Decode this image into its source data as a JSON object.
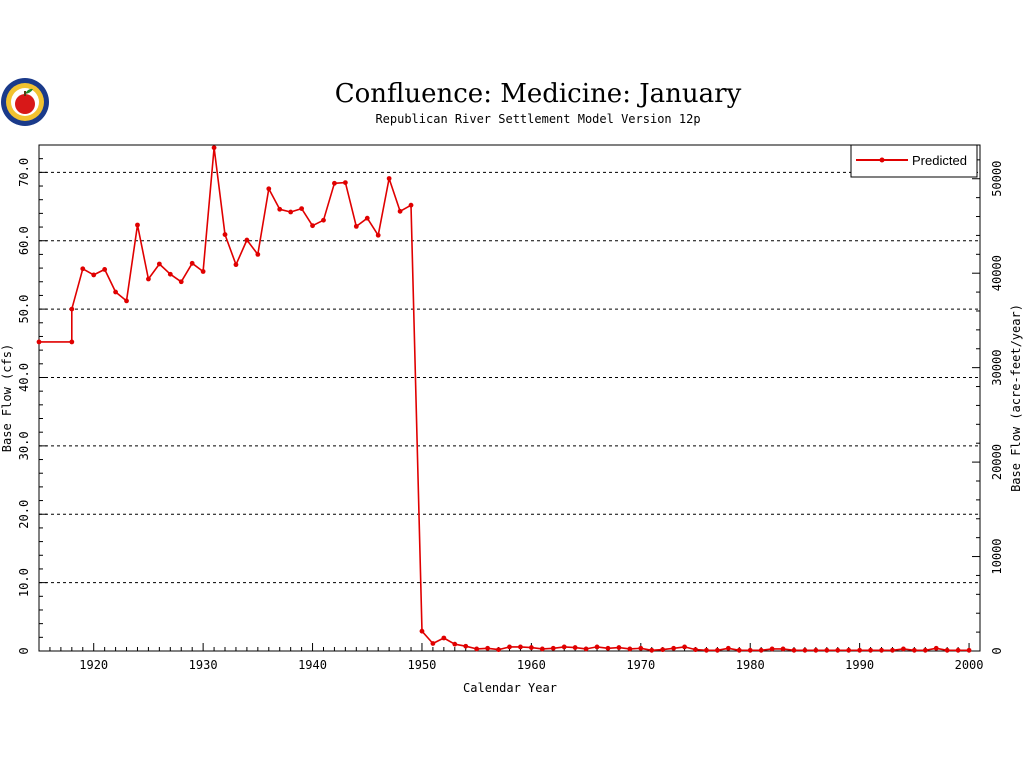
{
  "chart_data": {
    "type": "line",
    "title": "Confluence: Medicine: January",
    "subtitle": "Republican River Settlement Model Version 12p",
    "xlabel": "Calendar Year",
    "ylabel": "Base Flow (cfs)",
    "ylabel_right": "Base Flow (acre-feet/year)",
    "xlim": [
      1915,
      2001
    ],
    "ylim": [
      0,
      74
    ],
    "ylim_right": [
      0,
      53572.6
    ],
    "x_ticks": [
      1920,
      1930,
      1940,
      1950,
      1960,
      1970,
      1980,
      1990,
      2000
    ],
    "y_ticks": [
      0,
      10,
      20,
      30,
      40,
      50,
      60,
      70
    ],
    "y_tick_labels": [
      "0",
      "10.0",
      "20.0",
      "30.0",
      "40.0",
      "50.0",
      "60.0",
      "70.0"
    ],
    "y_ticks_right": [
      0,
      10000,
      20000,
      30000,
      40000,
      50000
    ],
    "y_tick_labels_right": [
      "0",
      "10000",
      "20000",
      "30000",
      "40000",
      "50000"
    ],
    "grid": "horizontal dashed",
    "legend_position": "top-right",
    "colors": {
      "series": "#e00000",
      "grid": "#000000",
      "axis": "#000000"
    },
    "series": [
      {
        "name": "Predicted",
        "x": [
          1915,
          1918,
          1918,
          1919,
          1920,
          1921,
          1922,
          1923,
          1924,
          1925,
          1926,
          1927,
          1928,
          1929,
          1930,
          1931,
          1932,
          1933,
          1934,
          1935,
          1936,
          1937,
          1938,
          1939,
          1940,
          1941,
          1942,
          1943,
          1944,
          1945,
          1946,
          1947,
          1948,
          1949,
          1950,
          1951,
          1952,
          1953,
          1954,
          1955,
          1956,
          1957,
          1958,
          1959,
          1960,
          1961,
          1962,
          1963,
          1964,
          1965,
          1966,
          1967,
          1968,
          1969,
          1970,
          1971,
          1972,
          1973,
          1974,
          1975,
          1976,
          1977,
          1978,
          1979,
          1980,
          1981,
          1982,
          1983,
          1984,
          1985,
          1986,
          1987,
          1988,
          1989,
          1990,
          1991,
          1992,
          1993,
          1994,
          1995,
          1996,
          1997,
          1998,
          1999,
          2000
        ],
        "values": [
          45.2,
          45.2,
          50.0,
          55.9,
          55.0,
          55.8,
          52.5,
          51.2,
          62.3,
          54.4,
          56.6,
          55.1,
          54.0,
          56.7,
          55.5,
          73.6,
          60.9,
          56.5,
          60.1,
          58.0,
          67.6,
          64.6,
          64.2,
          64.7,
          62.2,
          63.0,
          68.4,
          68.5,
          62.1,
          63.3,
          60.8,
          69.1,
          64.3,
          65.2,
          2.9,
          1.1,
          1.9,
          1.0,
          0.7,
          0.3,
          0.4,
          0.2,
          0.6,
          0.6,
          0.5,
          0.3,
          0.4,
          0.6,
          0.5,
          0.3,
          0.6,
          0.4,
          0.5,
          0.3,
          0.4,
          0.1,
          0.2,
          0.4,
          0.6,
          0.2,
          0.1,
          0.1,
          0.4,
          0.1,
          0.1,
          0.1,
          0.3,
          0.3,
          0.1,
          0.1,
          0.1,
          0.1,
          0.1,
          0.1,
          0.1,
          0.1,
          0.1,
          0.1,
          0.3,
          0.1,
          0.1,
          0.4,
          0.1,
          0.1,
          0.1
        ]
      }
    ]
  },
  "logo": {
    "icon": "apple-seal-icon"
  }
}
